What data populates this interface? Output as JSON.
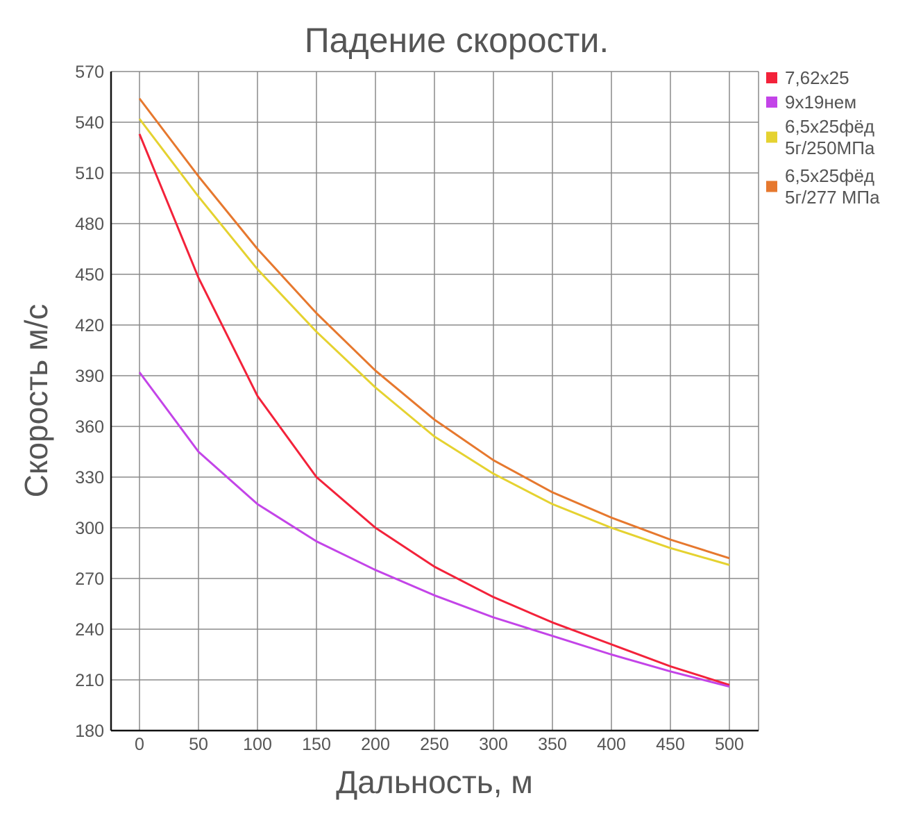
{
  "chart_data": {
    "type": "line",
    "title": "Падение скорости.",
    "xlabel": "Дальность, м",
    "ylabel": "Скорость м/с",
    "x": [
      0,
      50,
      100,
      150,
      200,
      250,
      300,
      350,
      400,
      450,
      500
    ],
    "xlim": [
      0,
      500
    ],
    "ylim": [
      180,
      570
    ],
    "y_ticks": [
      180,
      210,
      240,
      270,
      300,
      330,
      360,
      390,
      420,
      450,
      480,
      510,
      540,
      570
    ],
    "grid": true,
    "legend_position": "right",
    "series": [
      {
        "name": "7,62x25",
        "color": "#f3223a",
        "values": [
          533,
          448,
          378,
          330,
          300,
          277,
          259,
          244,
          231,
          218,
          207
        ]
      },
      {
        "name": "9x19нем",
        "color": "#c344e8",
        "values": [
          392,
          345,
          314,
          292,
          275,
          260,
          247,
          236,
          225,
          215,
          206
        ]
      },
      {
        "name": "6,5x25фёд 5г/250МПа",
        "legend_lines": [
          "6,5x25фёд",
          "5г/250МПа"
        ],
        "color": "#e5d230",
        "values": [
          542,
          496,
          453,
          416,
          383,
          354,
          332,
          314,
          300,
          288,
          278
        ]
      },
      {
        "name": "6,5x25фёд 5г/277 МПа",
        "legend_lines": [
          "6,5x25фёд",
          "5г/277 МПа"
        ],
        "color": "#e6782e",
        "values": [
          554,
          508,
          465,
          427,
          393,
          364,
          340,
          321,
          306,
          293,
          282
        ]
      }
    ]
  }
}
